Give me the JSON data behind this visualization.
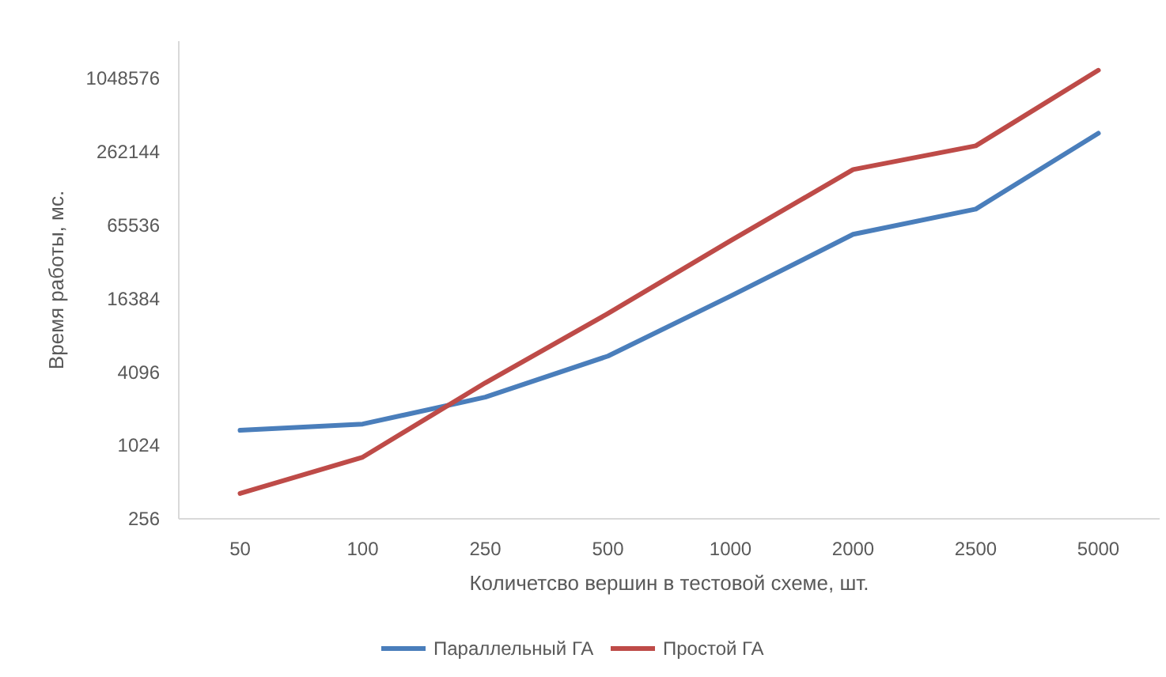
{
  "chart_data": {
    "type": "line",
    "xlabel": "Количетсво вершин в тестовой схеме, шт.",
    "ylabel": "Время работы, мс.",
    "categories": [
      "50",
      "100",
      "250",
      "500",
      "1000",
      "2000",
      "2500",
      "5000"
    ],
    "log": true,
    "ylim": [
      256,
      2097152
    ],
    "yticks": [
      256,
      1024,
      4096,
      16384,
      65536,
      262144,
      1048576
    ],
    "legend": "bottom",
    "grid": false,
    "marker": "none",
    "line_style": "solid",
    "series": [
      {
        "name": "Параллельный ГА",
        "color": "#4a7ebb",
        "values": [
          1360,
          1530,
          2540,
          5510,
          17100,
          54800,
          88300,
          369000
        ]
      },
      {
        "name": "Простой ГА",
        "color": "#be4b48",
        "values": [
          413,
          819,
          3330,
          12300,
          48600,
          186000,
          291000,
          1211000
        ]
      }
    ]
  }
}
